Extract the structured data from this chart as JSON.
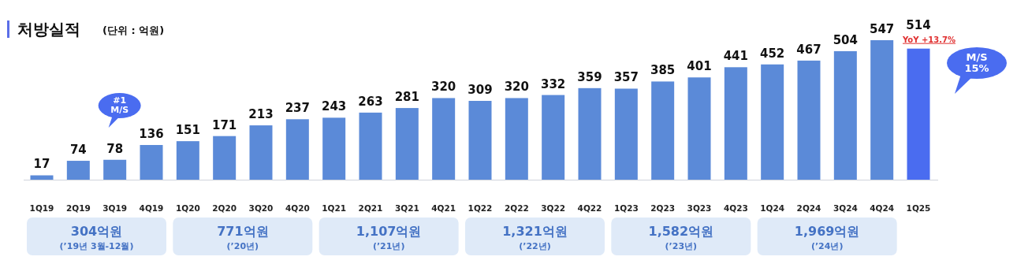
{
  "chart_data": {
    "type": "bar",
    "title": "처방실적",
    "subtitle": "(단위 : 억원)",
    "categories": [
      "1Q19",
      "2Q19",
      "3Q19",
      "4Q19",
      "1Q20",
      "2Q20",
      "3Q20",
      "4Q20",
      "1Q21",
      "2Q21",
      "3Q21",
      "4Q21",
      "1Q22",
      "2Q22",
      "3Q22",
      "4Q22",
      "1Q23",
      "2Q23",
      "3Q23",
      "4Q23",
      "1Q24",
      "2Q24",
      "3Q24",
      "4Q24",
      "1Q25"
    ],
    "values": [
      17,
      74,
      78,
      136,
      151,
      171,
      213,
      237,
      243,
      263,
      281,
      320,
      309,
      320,
      332,
      359,
      357,
      385,
      401,
      441,
      452,
      467,
      504,
      547,
      514
    ],
    "colors": [
      "#5b8ad8",
      "#5b8ad8",
      "#5b8ad8",
      "#5b8ad8",
      "#5b8ad8",
      "#5b8ad8",
      "#5b8ad8",
      "#5b8ad8",
      "#5b8ad8",
      "#5b8ad8",
      "#5b8ad8",
      "#5b8ad8",
      "#5b8ad8",
      "#5b8ad8",
      "#5b8ad8",
      "#5b8ad8",
      "#5b8ad8",
      "#5b8ad8",
      "#5b8ad8",
      "#5b8ad8",
      "#5b8ad8",
      "#5b8ad8",
      "#5b8ad8",
      "#5b8ad8",
      "#4a6cf0"
    ],
    "data_labels": true,
    "annotations": [
      "#1 M/S",
      "YoY +13.7%",
      "M/S 15%",
      "304억원",
      "(’19년 3월-12월)",
      "771억원",
      "(’20년)",
      "1,107억원",
      "(’21년)",
      "1,321억원",
      "(’22년)",
      "1,582억원",
      "(’23년)",
      "1,969억원",
      "(’24년)"
    ]
  }
}
